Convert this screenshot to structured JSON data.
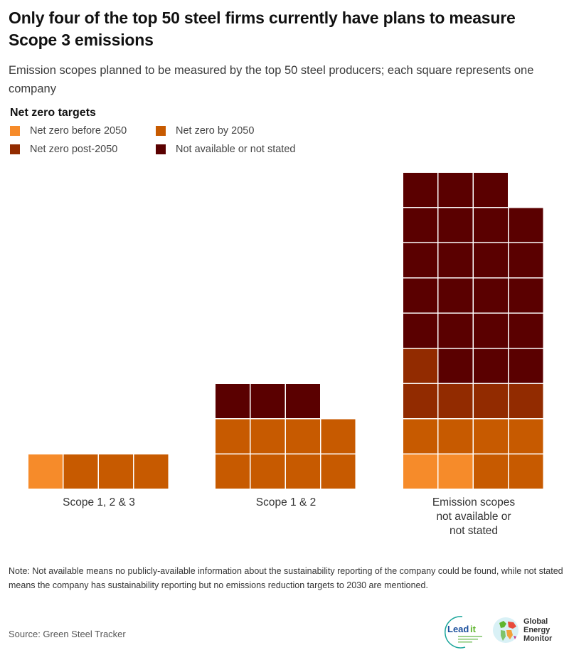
{
  "title": "Only four of the top 50 steel firms currently have plans to measure Scope 3 emissions",
  "subtitle": "Emission scopes planned to be measured by the top 50 steel producers; each square represents one company",
  "legend": {
    "title": "Net zero targets",
    "items": [
      {
        "key": "before",
        "label": "Net zero before 2050",
        "color": "#f68b2a"
      },
      {
        "key": "by",
        "label": "Net zero by 2050",
        "color": "#c75a00"
      },
      {
        "key": "post",
        "label": "Net zero post-2050",
        "color": "#922b00"
      },
      {
        "key": "na",
        "label": "Not available or not stated",
        "color": "#5a0000"
      }
    ]
  },
  "chart_data": {
    "type": "waffle",
    "title": "Only four of the top 50 steel firms currently have plans to measure Scope 3 emissions",
    "subtitle": "Emission scopes planned to be measured by the top 50 steel producers; each square represents one company",
    "legend_title": "Net zero targets",
    "legend_placement": "top-left",
    "unit": "one company per square",
    "columns_per_group": 4,
    "categories": [
      "Scope 1, 2 & 3",
      "Scope 1 & 2",
      "Emission scopes not available or not stated"
    ],
    "category_label_lines": [
      [
        "Scope 1, 2 & 3"
      ],
      [
        "Scope 1 & 2"
      ],
      [
        "Emission scopes",
        "not available or",
        "not stated"
      ]
    ],
    "series": [
      {
        "name": "Net zero before 2050",
        "key": "before",
        "values": [
          1,
          0,
          2
        ]
      },
      {
        "name": "Net zero by 2050",
        "key": "by",
        "values": [
          3,
          8,
          6
        ]
      },
      {
        "name": "Net zero post-2050",
        "key": "post",
        "values": [
          0,
          0,
          5
        ]
      },
      {
        "name": "Not available or not stated",
        "key": "na",
        "values": [
          0,
          3,
          22
        ]
      }
    ],
    "totals": [
      4,
      11,
      35
    ]
  },
  "note": "Note: Not available means no publicly-available information about the sustainability reporting of the company could be found, while not stated means the company has sustainability reporting but no emissions reduction targets to 2030 are mentioned.",
  "source": "Source: Green Steel Tracker",
  "logos": {
    "leadit": {
      "name": "Leadit",
      "tagline": "LEADERSHIP GROUP FOR INDUSTRY TRANSITION"
    },
    "gem": {
      "lines": [
        "Global",
        "Energy",
        "Monitor"
      ]
    }
  }
}
